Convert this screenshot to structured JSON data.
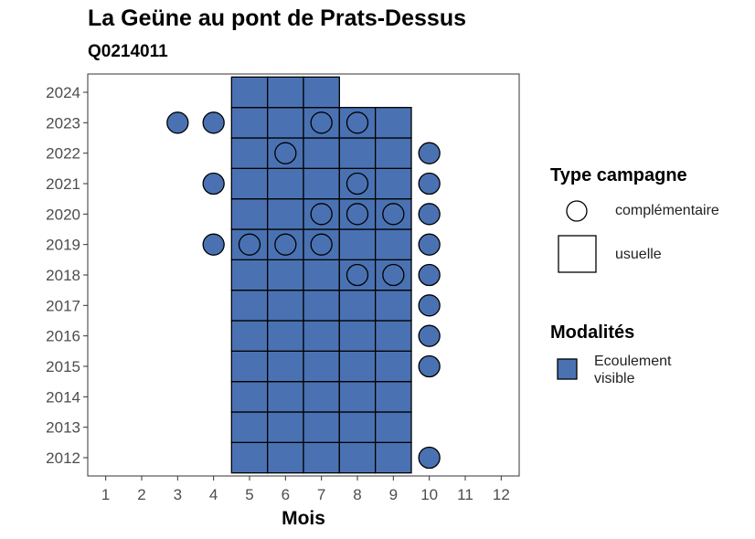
{
  "chart_data": {
    "type": "heatmap",
    "title": "La Geüne au pont de Prats-Dessus",
    "subtitle": "Q0214011",
    "xlabel": "Mois",
    "ylabel": "",
    "x_ticks": [
      1,
      2,
      3,
      4,
      5,
      6,
      7,
      8,
      9,
      10,
      11,
      12
    ],
    "y_ticks": [
      2012,
      2013,
      2014,
      2015,
      2016,
      2017,
      2018,
      2019,
      2020,
      2021,
      2022,
      2023,
      2024
    ],
    "xlim": [
      0.5,
      12.5
    ],
    "ylim": [
      2011.4,
      2024.6
    ],
    "grid": false,
    "fill_color": "#4a72b3",
    "usuelle": [
      {
        "year": 2012,
        "months": [
          5,
          6,
          7,
          8,
          9
        ]
      },
      {
        "year": 2013,
        "months": [
          5,
          6,
          7,
          8,
          9
        ]
      },
      {
        "year": 2014,
        "months": [
          5,
          6,
          7,
          8,
          9
        ]
      },
      {
        "year": 2015,
        "months": [
          5,
          6,
          7,
          8,
          9
        ]
      },
      {
        "year": 2016,
        "months": [
          5,
          6,
          7,
          8,
          9
        ]
      },
      {
        "year": 2017,
        "months": [
          5,
          6,
          7,
          8,
          9
        ]
      },
      {
        "year": 2018,
        "months": [
          5,
          6,
          7,
          8,
          9
        ]
      },
      {
        "year": 2019,
        "months": [
          5,
          6,
          7,
          8,
          9
        ]
      },
      {
        "year": 2020,
        "months": [
          5,
          6,
          7,
          8,
          9
        ]
      },
      {
        "year": 2021,
        "months": [
          5,
          6,
          7,
          8,
          9
        ]
      },
      {
        "year": 2022,
        "months": [
          5,
          6,
          7,
          8,
          9
        ]
      },
      {
        "year": 2023,
        "months": [
          5,
          6,
          7,
          8,
          9
        ]
      },
      {
        "year": 2024,
        "months": [
          5,
          6,
          7
        ]
      }
    ],
    "complementaire": [
      {
        "year": 2012,
        "months": [
          10
        ]
      },
      {
        "year": 2015,
        "months": [
          10
        ]
      },
      {
        "year": 2016,
        "months": [
          10
        ]
      },
      {
        "year": 2017,
        "months": [
          10
        ]
      },
      {
        "year": 2018,
        "months": [
          8,
          9,
          10
        ]
      },
      {
        "year": 2019,
        "months": [
          4,
          5,
          6,
          7,
          10
        ]
      },
      {
        "year": 2020,
        "months": [
          7,
          8,
          9,
          10
        ]
      },
      {
        "year": 2021,
        "months": [
          4,
          8,
          10
        ]
      },
      {
        "year": 2022,
        "months": [
          6,
          10
        ]
      },
      {
        "year": 2023,
        "months": [
          3,
          4,
          7,
          8
        ]
      }
    ],
    "legend": {
      "position": "right",
      "type_title": "Type campagne",
      "type_items": [
        "complémentaire",
        "usuelle"
      ],
      "mod_title": "Modalités",
      "mod_items": [
        "Ecoulement visible"
      ]
    }
  }
}
